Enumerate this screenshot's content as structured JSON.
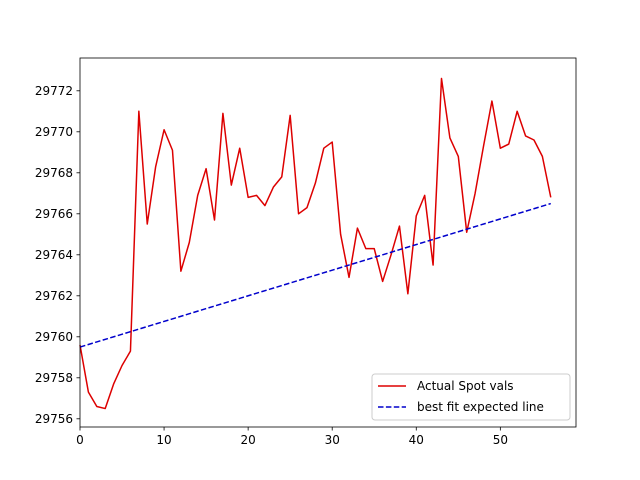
{
  "chart_data": {
    "type": "line",
    "title": "",
    "xlabel": "",
    "ylabel": "",
    "xlim": [
      0,
      59
    ],
    "ylim": [
      29755.6,
      29773.6
    ],
    "x_ticks": [
      0,
      10,
      20,
      30,
      40,
      50
    ],
    "y_ticks": [
      29756,
      29758,
      29760,
      29762,
      29764,
      29766,
      29768,
      29770,
      29772
    ],
    "grid": false,
    "legend_position": "lower-right",
    "series": [
      {
        "name": "Actual Spot vals",
        "color": "#dd0000",
        "style": "solid",
        "x": [
          0,
          1,
          2,
          3,
          4,
          5,
          6,
          7,
          8,
          9,
          10,
          11,
          12,
          13,
          14,
          15,
          16,
          17,
          18,
          19,
          20,
          21,
          22,
          23,
          24,
          25,
          26,
          27,
          28,
          29,
          30,
          31,
          32,
          33,
          34,
          35,
          36,
          37,
          38,
          39,
          40,
          41,
          42,
          43,
          44,
          45,
          46,
          47,
          48,
          49,
          50,
          51,
          52,
          53,
          54,
          55,
          56
        ],
        "y": [
          29759.6,
          29757.3,
          29756.6,
          29756.5,
          29757.7,
          29758.6,
          29759.3,
          29771.0,
          29765.5,
          29768.3,
          29770.1,
          29769.1,
          29763.2,
          29764.6,
          29766.9,
          29768.2,
          29765.7,
          29770.9,
          29767.4,
          29769.2,
          29766.8,
          29766.9,
          29766.4,
          29767.3,
          29767.8,
          29770.8,
          29766.0,
          29766.3,
          29767.5,
          29769.2,
          29769.5,
          29765.0,
          29762.9,
          29765.3,
          29764.3,
          29764.3,
          29762.7,
          29764.0,
          29765.4,
          29762.1,
          29765.9,
          29766.9,
          29763.5,
          29772.6,
          29769.7,
          29768.8,
          29765.1,
          29767.0,
          29769.3,
          29771.5,
          29769.2,
          29769.4,
          29771.0,
          29769.8,
          29769.6,
          29768.8,
          29766.8
        ]
      },
      {
        "name": "best fit expected line",
        "color": "#0000cc",
        "style": "dashed",
        "x": [
          0,
          56
        ],
        "y": [
          29759.5,
          29766.5
        ]
      }
    ]
  }
}
